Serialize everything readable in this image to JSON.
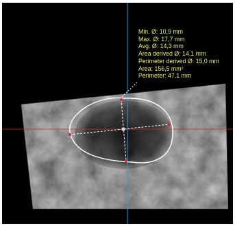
{
  "measurements": [
    {
      "key": "min_diameter",
      "text": "Min. Ø: 10,9 mm"
    },
    {
      "key": "max_diameter",
      "text": "Max. Ø: 17,7 mm"
    },
    {
      "key": "avg_diameter",
      "text": "Avg. Ø: 14,3 mm"
    },
    {
      "key": "area_derived_diameter",
      "text": "Area derived Ø: 14,1 mm"
    },
    {
      "key": "perimeter_derived_diameter",
      "text": "Perimeter derived Ø: 15,0 mm"
    },
    {
      "key": "area",
      "text": "Area: 156,5 mm²"
    },
    {
      "key": "perimeter",
      "text": "Perimeter: 47,1 mm"
    }
  ],
  "colors": {
    "background": "#000000",
    "annotation_text": "#e9ef6a",
    "vertical_crosshair": "#3c95d8",
    "horizontal_crosshair": "#c2322f",
    "contour": "#ffffff",
    "handles": "#e0232b"
  }
}
